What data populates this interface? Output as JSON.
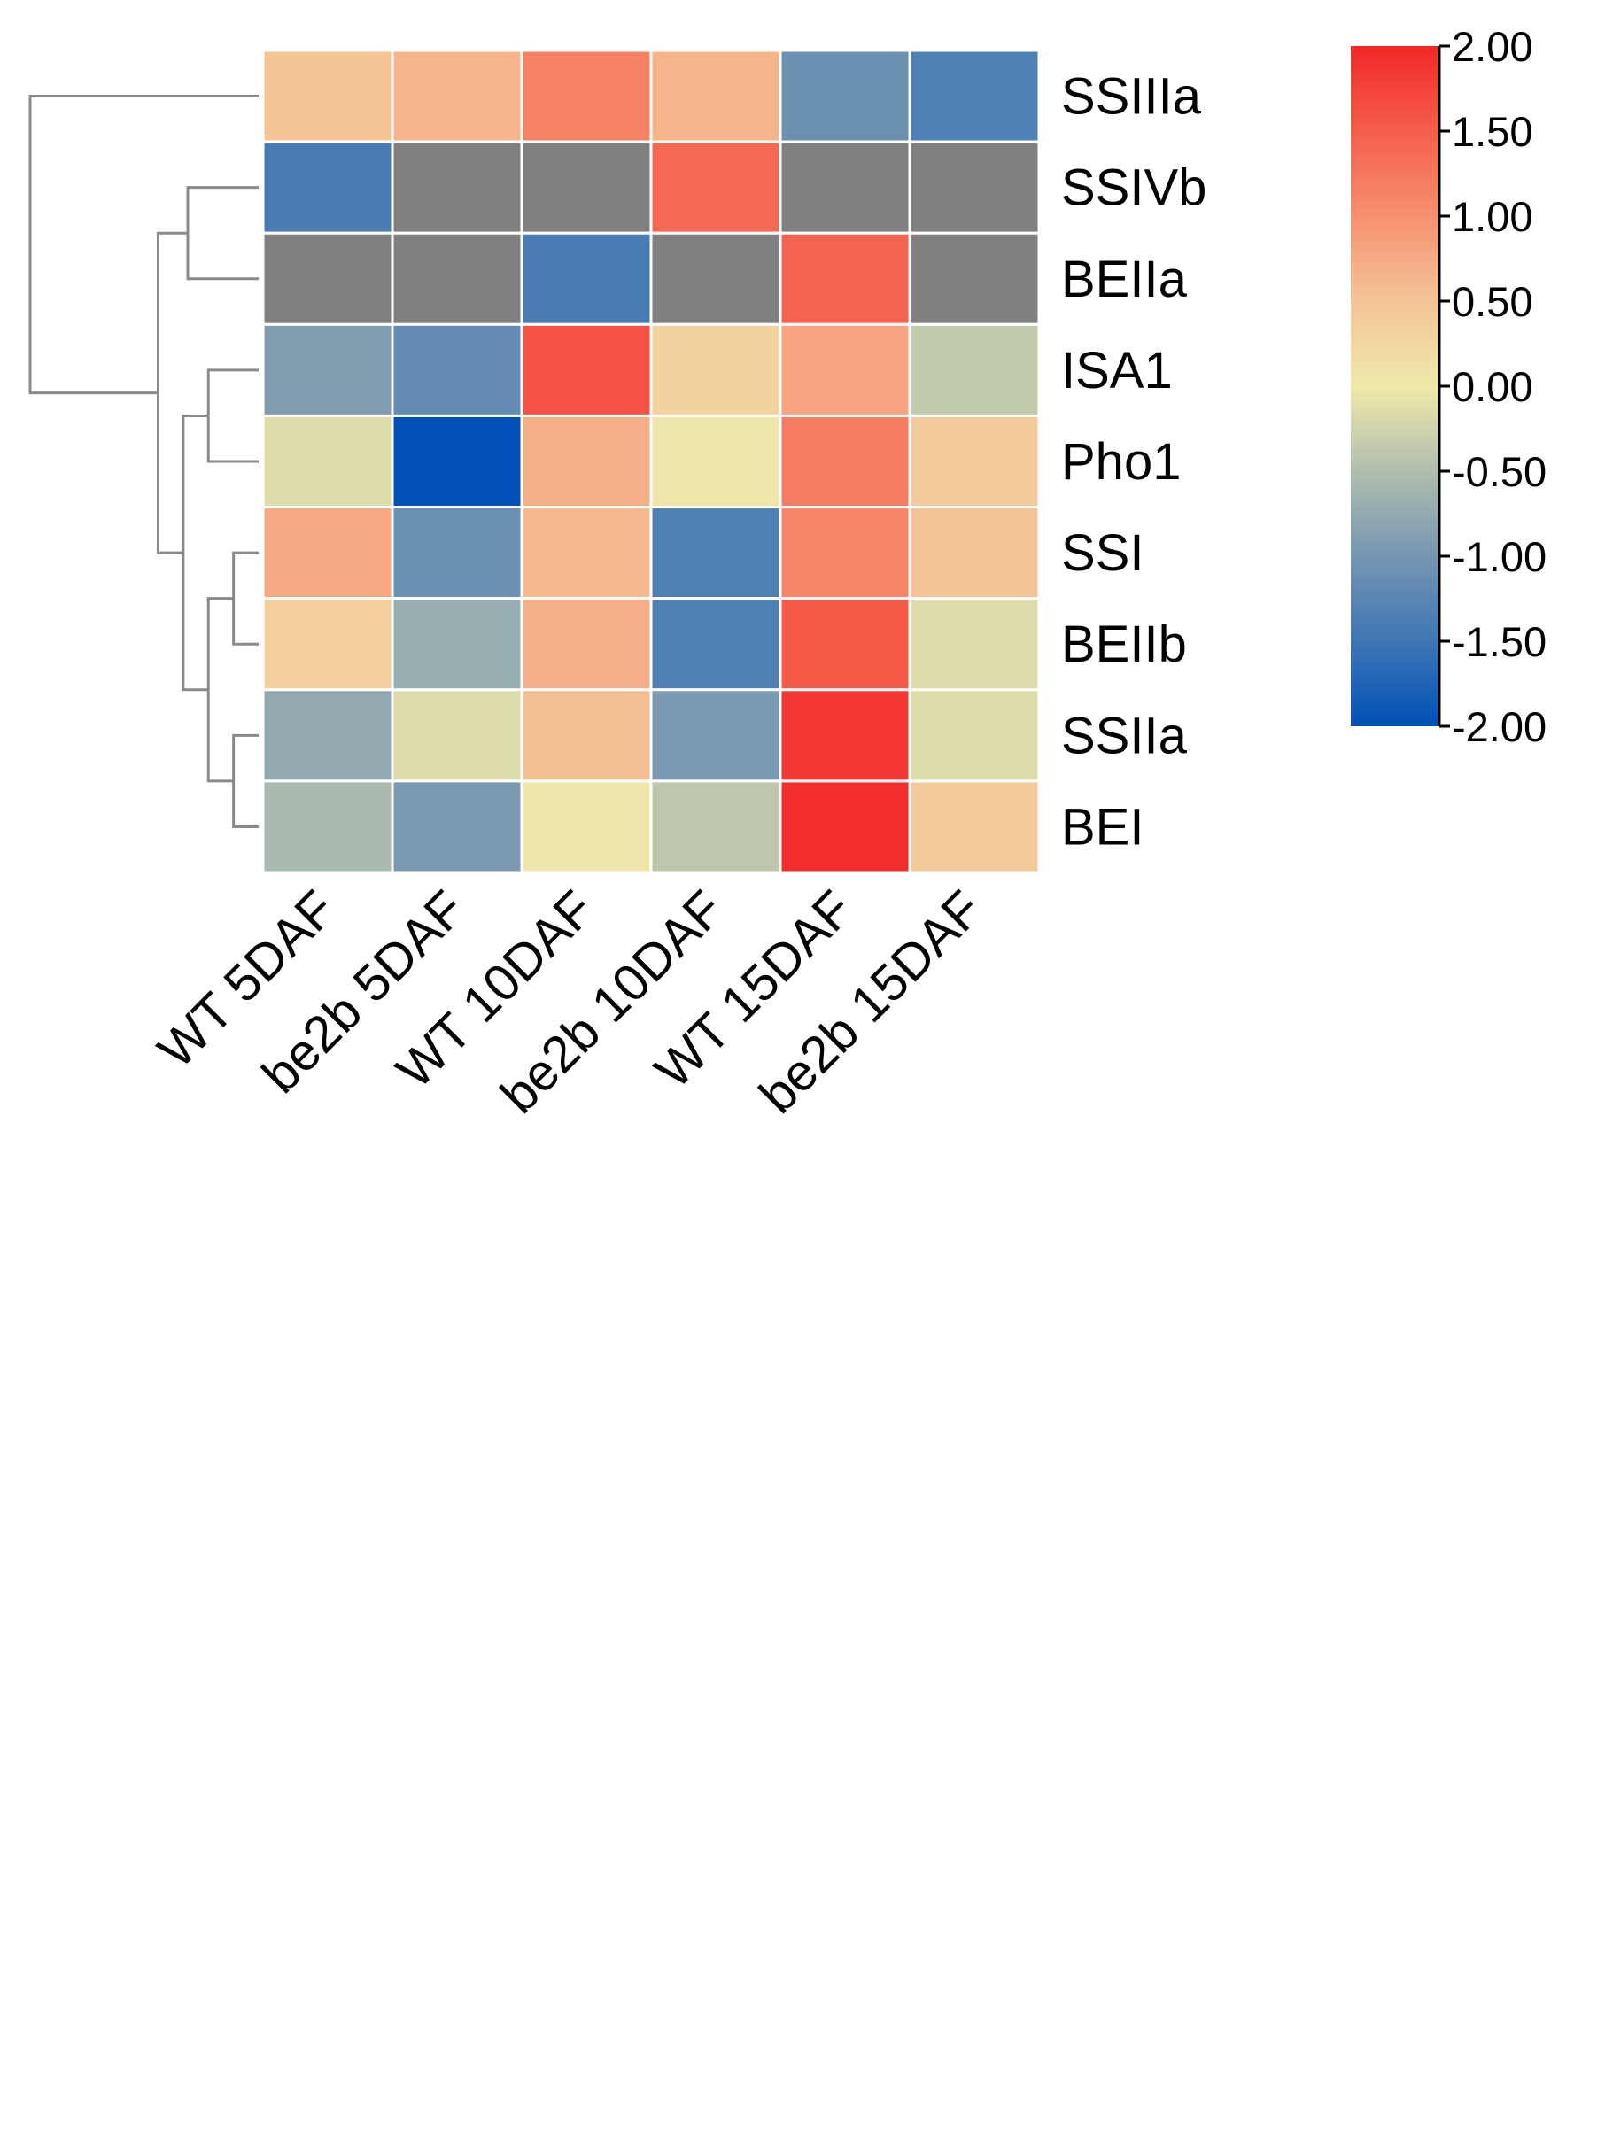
{
  "chart_data": {
    "type": "heatmap",
    "title": "",
    "columns": [
      "WT 5DAF",
      "be2b 5DAF",
      "WT 10DAF",
      "be2b 10DAF",
      "WT 15DAF",
      "be2b 15DAF"
    ],
    "rows": [
      "SSIIIa",
      "SSIVb",
      "BEIIa",
      "ISA1",
      "Pho1",
      "SSI",
      "BEIIb",
      "SSIIa",
      "BEI"
    ],
    "values": [
      [
        0.5,
        0.65,
        1.15,
        0.65,
        -1.1,
        -1.35
      ],
      [
        -1.4,
        null,
        null,
        1.4,
        null,
        null
      ],
      [
        null,
        null,
        -1.4,
        null,
        1.45,
        null
      ],
      [
        -0.9,
        -1.15,
        1.6,
        0.3,
        0.8,
        -0.35
      ],
      [
        -0.15,
        -2.0,
        0.7,
        0.05,
        1.2,
        0.4
      ],
      [
        0.75,
        -1.1,
        0.6,
        -1.35,
        1.1,
        0.5
      ],
      [
        0.35,
        -0.7,
        0.7,
        -1.35,
        1.55,
        -0.15
      ],
      [
        -0.75,
        -0.15,
        0.55,
        -0.95,
        1.85,
        -0.15
      ],
      [
        -0.55,
        -0.95,
        0.05,
        -0.4,
        1.95,
        0.4
      ]
    ],
    "missing_color": "#808080",
    "color_scale": {
      "min": -2.0,
      "max": 2.0,
      "stops": [
        {
          "value": -2.0,
          "color": "#0050B8"
        },
        {
          "value": -1.5,
          "color": "#3F76B4"
        },
        {
          "value": -1.0,
          "color": "#7596B2"
        },
        {
          "value": -0.5,
          "color": "#B0BEAE"
        },
        {
          "value": 0.0,
          "color": "#F0E9AA"
        },
        {
          "value": 0.5,
          "color": "#F4C497"
        },
        {
          "value": 1.0,
          "color": "#F79070"
        },
        {
          "value": 1.5,
          "color": "#F55E4C"
        },
        {
          "value": 2.0,
          "color": "#F22828"
        }
      ]
    },
    "colorbar_ticks": [
      "2.00",
      "1.50",
      "1.00",
      "0.50",
      "0.00",
      "-0.50",
      "-1.00",
      "-1.50",
      "-2.00"
    ],
    "dendrogram": {
      "leaves": [
        "SSIIIa",
        "SSIVb",
        "BEIIa",
        "ISA1",
        "Pho1",
        "SSI",
        "BEIIb",
        "SSIIa",
        "BEI"
      ],
      "merges": [
        {
          "left": "SSIVb",
          "right": "BEIIa",
          "name": "A"
        },
        {
          "left": "ISA1",
          "right": "Pho1",
          "name": "B"
        },
        {
          "left": "SSI",
          "right": "BEIIb",
          "name": "C"
        },
        {
          "left": "SSIIa",
          "right": "BEI",
          "name": "D"
        },
        {
          "left": "C",
          "right": "D",
          "name": "E"
        },
        {
          "left": "B",
          "right": "E",
          "name": "F"
        },
        {
          "left": "A",
          "right": "F",
          "name": "G"
        },
        {
          "left": "SSIIIa",
          "right": "G",
          "name": "H"
        }
      ],
      "heights": {
        "A": 0.31,
        "B": 0.22,
        "C": 0.11,
        "D": 0.11,
        "E": 0.22,
        "F": 0.33,
        "G": 0.44,
        "H": 1.0
      }
    }
  }
}
